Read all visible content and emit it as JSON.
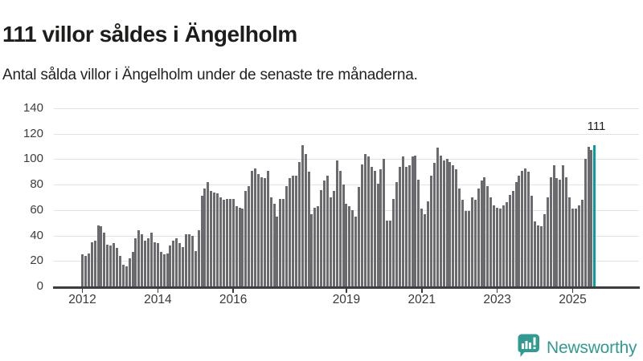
{
  "title": "111 villor såldes i Ängelholm",
  "subtitle": "Antal sålda villor i Ängelholm under de senaste tre månaderna.",
  "annotation": {
    "label": "111"
  },
  "logo": {
    "text": "Newsworthy",
    "icon": "bar-chart-speech-bubble"
  },
  "colors": {
    "bar": "#6b6b6f",
    "highlight": "#069e9e",
    "grid": "#e2e2e2",
    "axis": "#3d3d3f",
    "title_text": "#1d1d1b",
    "tick_text": "#3d3d3d",
    "logo_teal": "#339a92"
  },
  "chart_data": {
    "type": "bar",
    "title": "111 villor såldes i Ängelholm",
    "subtitle": "Antal sålda villor i Ängelholm under de senaste tre månaderna.",
    "xlabel": "",
    "ylabel": "",
    "ylim": [
      0,
      140
    ],
    "grid": true,
    "y_ticks": [
      0,
      20,
      40,
      60,
      80,
      100,
      120,
      140
    ],
    "x_start_month": "2012-01",
    "x_end_month": "2025-08",
    "x_tick_labels": [
      {
        "label": "2012",
        "month_index": 0
      },
      {
        "label": "2014",
        "month_index": 24
      },
      {
        "label": "2016",
        "month_index": 48
      },
      {
        "label": "2019",
        "month_index": 84
      },
      {
        "label": "2021",
        "month_index": 108
      },
      {
        "label": "2023",
        "month_index": 132
      },
      {
        "label": "2025",
        "month_index": 156
      }
    ],
    "values": [
      25,
      24,
      26,
      35,
      36,
      48,
      47,
      42,
      33,
      32,
      34,
      30,
      24,
      17,
      16,
      22,
      27,
      38,
      44,
      41,
      36,
      38,
      42,
      35,
      34,
      27,
      25,
      26,
      32,
      36,
      38,
      34,
      31,
      41,
      41,
      40,
      28,
      44,
      71,
      77,
      82,
      75,
      74,
      73,
      70,
      68,
      69,
      69,
      69,
      63,
      62,
      61,
      75,
      79,
      91,
      93,
      88,
      86,
      85,
      91,
      70,
      65,
      55,
      69,
      69,
      79,
      85,
      87,
      87,
      98,
      111,
      104,
      90,
      57,
      62,
      63,
      76,
      83,
      87,
      70,
      75,
      99,
      91,
      80,
      65,
      63,
      60,
      55,
      78,
      96,
      104,
      102,
      94,
      91,
      81,
      92,
      100,
      52,
      52,
      69,
      82,
      94,
      102,
      94,
      95,
      102,
      103,
      84,
      61,
      57,
      67,
      87,
      97,
      109,
      103,
      99,
      100,
      98,
      95,
      92,
      77,
      68,
      59,
      59,
      70,
      68,
      77,
      83,
      86,
      79,
      70,
      64,
      62,
      61,
      64,
      66,
      72,
      75,
      82,
      87,
      91,
      93,
      90,
      71,
      51,
      48,
      47,
      57,
      70,
      86,
      95,
      85,
      84,
      95,
      86,
      70,
      61,
      61,
      64,
      68,
      100,
      110,
      107,
      111
    ],
    "highlight_index": 163,
    "highlight_value": 111,
    "legend": null
  }
}
